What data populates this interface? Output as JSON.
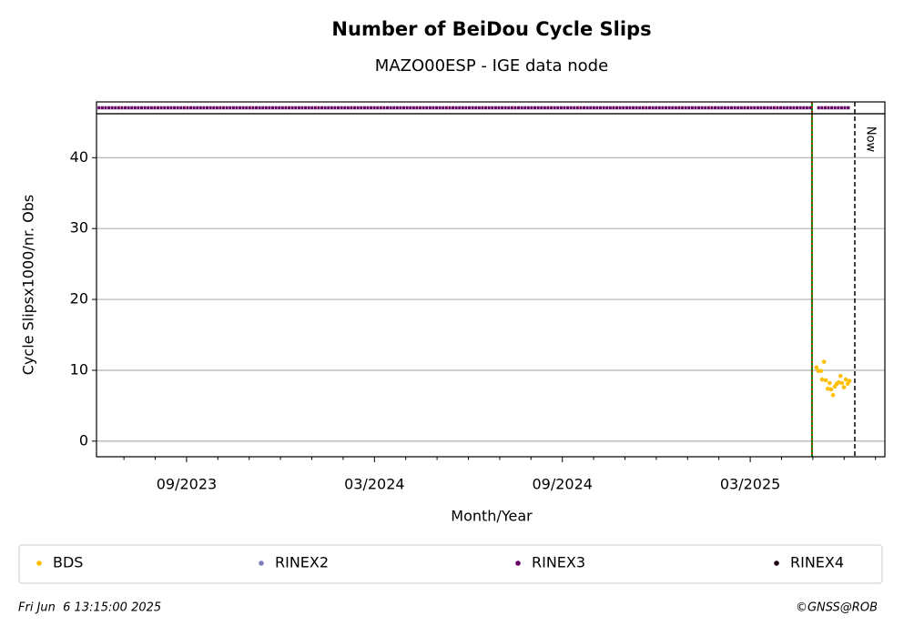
{
  "chart_data": {
    "type": "scatter",
    "title": "Number of BeiDou Cycle Slips",
    "subtitle": "MAZO00ESP - IGE data node",
    "xlabel": "Month/Year",
    "ylabel": "Cycle Slipsx1000/nr. Obs",
    "xlim": [
      2023.427,
      2025.525
    ],
    "ylim": [
      -2.2,
      46.2
    ],
    "xticks": [
      {
        "value": 2023.6667,
        "label": "09/2023"
      },
      {
        "value": 2024.1667,
        "label": "03/2024"
      },
      {
        "value": 2024.6667,
        "label": "09/2024"
      },
      {
        "value": 2025.1667,
        "label": "03/2025"
      }
    ],
    "xminorticks": [
      2023.5,
      2023.5833,
      2023.75,
      2023.8333,
      2023.9167,
      2024.0,
      2024.0833,
      2024.25,
      2024.3333,
      2024.4167,
      2024.5,
      2024.5833,
      2024.75,
      2024.8333,
      2024.9167,
      2025.0,
      2025.0833,
      2025.25,
      2025.3333,
      2025.4167,
      2025.5
    ],
    "yticks": [
      0,
      10,
      20,
      30,
      40
    ],
    "grid": true,
    "series": [
      {
        "name": "BDS",
        "color": "#ffbf00",
        "x": [
          2025.343,
          2025.348,
          2025.355,
          2025.363,
          2025.358,
          2025.368,
          2025.373,
          2025.378,
          2025.382,
          2025.387,
          2025.392,
          2025.397,
          2025.402,
          2025.407,
          2025.411,
          2025.416,
          2025.421,
          2025.426,
          2025.431
        ],
        "values": [
          10.4,
          9.9,
          9.9,
          11.2,
          8.7,
          8.6,
          7.4,
          8.2,
          7.3,
          6.5,
          7.7,
          8.1,
          8.3,
          9.2,
          8.2,
          7.6,
          8.7,
          8.1,
          8.5
        ]
      },
      {
        "name": "RINEX2",
        "color": "#8080c0",
        "x": [],
        "values": []
      },
      {
        "name": "RINEX3",
        "color": "#660066",
        "periods": [
          [
            2023.43,
            2025.33
          ],
          [
            2025.345,
            2025.433
          ]
        ]
      },
      {
        "name": "RINEX4",
        "color": "#1a0010",
        "x": [],
        "values": []
      }
    ],
    "event_line": {
      "x": 2025.331,
      "colors": [
        "#008000",
        "#ff0000"
      ]
    },
    "now_line": {
      "x": 2025.445,
      "label": "Now",
      "color": "#000000"
    },
    "legend": "bottom"
  },
  "footer": {
    "date": "Fri Jun  6 13:15:00 2025",
    "credit": "©GNSS@ROB"
  }
}
